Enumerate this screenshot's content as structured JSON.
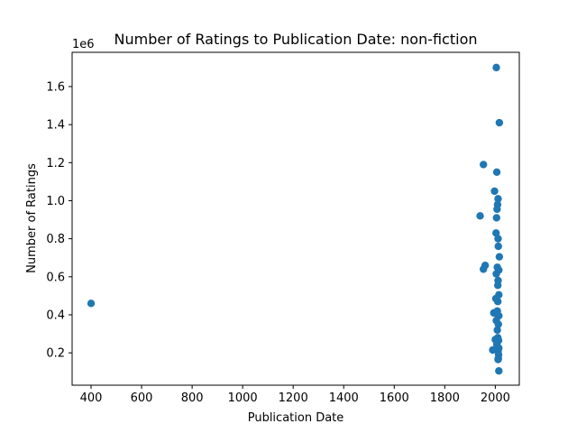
{
  "chart_data": {
    "type": "scatter",
    "title": "Number of Ratings to Publication Date: non-fiction",
    "xlabel": "Publication Date",
    "ylabel": "Number of Ratings",
    "y_offset_label": "1e6",
    "xlim": [
      325,
      2095
    ],
    "ylim": [
      30000,
      1780000
    ],
    "x_ticks": [
      400,
      600,
      800,
      1000,
      1200,
      1400,
      1600,
      1800,
      2000
    ],
    "x_tick_labels": [
      "400",
      "600",
      "800",
      "1000",
      "1200",
      "1400",
      "1600",
      "1800",
      "2000"
    ],
    "y_ticks": [
      200000,
      400000,
      600000,
      800000,
      1000000,
      1200000,
      1400000,
      1600000
    ],
    "y_tick_labels": [
      "0.2",
      "0.4",
      "0.6",
      "0.8",
      "1.0",
      "1.2",
      "1.4",
      "1.6"
    ],
    "grid": false,
    "marker_color": "#1f77b4",
    "series": [
      {
        "x": [
          400,
          2004,
          2016,
          1953,
          2006,
          1997,
          2011,
          2009,
          2007,
          1940,
          2005,
          2003,
          2011,
          2012,
          2016,
          1960,
          1953,
          2008,
          2014,
          2004,
          2011,
          2010,
          2014,
          2002,
          2010,
          2008,
          1994,
          2006,
          2014,
          2004,
          2012,
          2008,
          2010,
          2000,
          2013,
          2006,
          2014,
          2011,
          2012,
          1990,
          2013,
          2011,
          2014
        ],
        "y": [
          460000,
          1700000,
          1410000,
          1190000,
          1150000,
          1050000,
          1010000,
          980000,
          955000,
          920000,
          910000,
          830000,
          800000,
          760000,
          705000,
          660000,
          640000,
          650000,
          635000,
          615000,
          580000,
          555000,
          505000,
          485000,
          470000,
          420000,
          410000,
          405000,
          395000,
          370000,
          350000,
          320000,
          280000,
          270000,
          265000,
          245000,
          225000,
          210000,
          170000,
          215000,
          190000,
          165000,
          105000
        ]
      }
    ]
  }
}
